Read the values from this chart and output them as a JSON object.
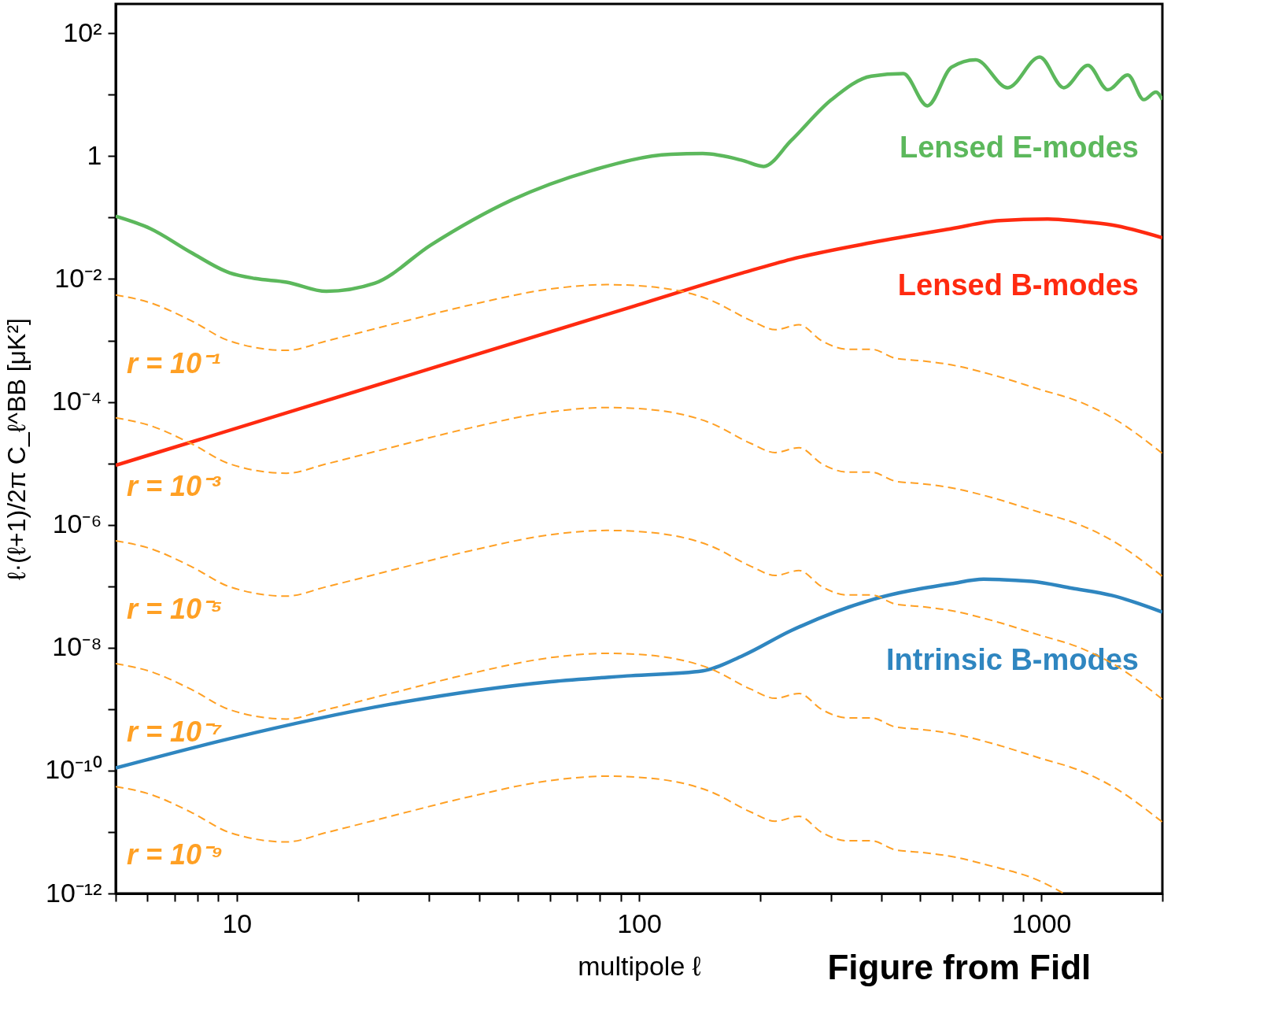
{
  "chart_data": {
    "type": "line",
    "xlabel": "multipole ℓ",
    "ylabel": "ℓ·(ℓ+1)/2π C_ℓ^BB [μK²]",
    "log": "xy",
    "grid": false,
    "xlim": [
      5,
      2000
    ],
    "ylim": [
      1e-12,
      300
    ],
    "xticks": [
      {
        "value": 5,
        "label": null
      },
      {
        "value": 6,
        "label": null
      },
      {
        "value": 7,
        "label": null
      },
      {
        "value": 8,
        "label": null
      },
      {
        "value": 9,
        "label": null
      },
      10,
      {
        "value": 20,
        "label": null
      },
      {
        "value": 30,
        "label": null
      },
      {
        "value": 40,
        "label": null
      },
      {
        "value": 50,
        "label": null
      },
      {
        "value": 60,
        "label": null
      },
      {
        "value": 70,
        "label": null
      },
      {
        "value": 80,
        "label": null
      },
      {
        "value": 90,
        "label": null
      },
      100,
      {
        "value": 200,
        "label": null
      },
      {
        "value": 300,
        "label": null
      },
      {
        "value": 400,
        "label": null
      },
      {
        "value": 500,
        "label": null
      },
      {
        "value": 600,
        "label": null
      },
      {
        "value": 700,
        "label": null
      },
      {
        "value": 800,
        "label": null
      },
      {
        "value": 900,
        "label": null
      },
      1000,
      {
        "value": 2000,
        "label": null
      }
    ],
    "yticks": [
      {
        "value": 1e-12,
        "label": "10⁻¹²"
      },
      {
        "value": 1e-11,
        "label": null
      },
      {
        "value": 1e-10,
        "label": "10⁻¹⁰"
      },
      {
        "value": 1e-09,
        "label": null
      },
      {
        "value": 1e-08,
        "label": "10⁻⁸"
      },
      {
        "value": 1e-07,
        "label": null
      },
      {
        "value": 1e-06,
        "label": "10⁻⁶"
      },
      {
        "value": 1e-05,
        "label": null
      },
      {
        "value": 0.0001,
        "label": "10⁻⁴"
      },
      {
        "value": 0.001,
        "label": null
      },
      {
        "value": 0.01,
        "label": "10⁻²"
      },
      {
        "value": 0.1,
        "label": null
      },
      1,
      {
        "value": 10,
        "label": null
      },
      {
        "value": 100,
        "label": "10²"
      }
    ],
    "annotations": [
      "Figure from Fidl"
    ],
    "series": [
      {
        "name": "Lensed E-modes",
        "color": "#5cb85c",
        "line_style": "solid",
        "x": [
          5,
          6.1,
          7.7,
          9.6,
          11.1,
          13.3,
          16.7,
          22,
          30.4,
          48,
          76,
          120,
          144,
          181,
          204,
          239,
          301,
          378,
          454,
          521,
          598,
          687,
          825,
          991,
          1137,
          1306,
          1464,
          1641,
          1798,
          1928,
          2000
        ],
        "values": [
          0.105,
          0.066,
          0.027,
          0.0126,
          0.0102,
          0.0089,
          0.0063,
          0.0085,
          0.036,
          0.19,
          0.58,
          1.07,
          1.1,
          0.85,
          0.68,
          1.8,
          8.3,
          20,
          22,
          6.6,
          28,
          37,
          13,
          41,
          13,
          30,
          12,
          21,
          8.3,
          11,
          8.3
        ]
      },
      {
        "name": "Lensed B-modes",
        "color": "#ff2a10",
        "line_style": "solid",
        "x": [
          5,
          16.7,
          95.5,
          181,
          239,
          378,
          598,
          787,
          1038,
          1247,
          1497,
          2000
        ],
        "values": [
          9.3e-06,
          0.000105,
          0.0035,
          0.0126,
          0.021,
          0.039,
          0.066,
          0.089,
          0.095,
          0.087,
          0.076,
          0.047
        ]
      },
      {
        "name": "Intrinsic B-modes",
        "color": "#2f86c0",
        "line_style": "solid",
        "x": [
          5,
          9.6,
          24.1,
          60.4,
          95.5,
          144,
          181,
          239,
          378,
          598,
          719,
          946,
          1192,
          1497,
          2000
        ],
        "values": [
          1.1e-10,
          3.3e-10,
          1.2e-09,
          2.8e-09,
          3.5e-09,
          4.2e-09,
          7.4e-09,
          1.9e-08,
          6e-08,
          1.1e-07,
          1.3e-07,
          1.2e-07,
          9.3e-08,
          7.1e-08,
          3.8e-08
        ]
      },
      {
        "name": "r = 10⁻¹",
        "color": "#ffa024",
        "line_style": "dashed",
        "x": [
          5,
          6.1,
          7.7,
          9.6,
          13.3,
          16.7,
          24.1,
          38.2,
          60.4,
          83.2,
          104.6,
          151,
          190,
          218,
          250,
          285,
          330,
          378,
          435,
          498,
          598,
          750,
          991,
          1247,
          1497,
          2000
        ],
        "values": [
          0.0055,
          0.0041,
          0.0021,
          0.00098,
          0.00069,
          0.00098,
          0.0018,
          0.0038,
          0.0069,
          0.0081,
          0.0076,
          0.0045,
          0.0021,
          0.0015,
          0.0018,
          0.00098,
          0.00072,
          0.00072,
          0.00051,
          0.00047,
          0.0004,
          0.00028,
          0.00016,
          0.0001,
          5.6e-05,
          1.45e-05
        ]
      },
      {
        "name": "r = 10⁻³",
        "color": "#ffa024",
        "line_style": "dashed",
        "x": [
          5,
          6.1,
          7.7,
          9.6,
          13.3,
          16.7,
          24.1,
          38.2,
          60.4,
          83.2,
          104.6,
          151,
          190,
          218,
          250,
          285,
          330,
          378,
          435,
          498,
          598,
          750,
          991,
          1247,
          1497,
          2000
        ],
        "values": [
          5.5e-05,
          4.1e-05,
          2.1e-05,
          9.8e-06,
          6.9e-06,
          9.8e-06,
          1.8e-05,
          3.8e-05,
          6.9e-05,
          8.1e-05,
          7.6e-05,
          4.5e-05,
          2.1e-05,
          1.5e-05,
          1.8e-05,
          9.8e-06,
          7.2e-06,
          7.2e-06,
          5.1e-06,
          4.7e-06,
          4e-06,
          2.8e-06,
          1.6e-06,
          1e-06,
          5.6e-07,
          1.45e-07
        ]
      },
      {
        "name": "r = 10⁻⁵",
        "color": "#ffa024",
        "line_style": "dashed",
        "x": [
          5,
          6.1,
          7.7,
          9.6,
          13.3,
          16.7,
          24.1,
          38.2,
          60.4,
          83.2,
          104.6,
          151,
          190,
          218,
          250,
          285,
          330,
          378,
          435,
          498,
          598,
          750,
          991,
          1247,
          1497,
          2000
        ],
        "values": [
          5.5e-07,
          4.1e-07,
          2.1e-07,
          9.8e-08,
          6.9e-08,
          9.8e-08,
          1.8e-07,
          3.8e-07,
          6.9e-07,
          8.1e-07,
          7.6e-07,
          4.5e-07,
          2.1e-07,
          1.5e-07,
          1.8e-07,
          9.8e-08,
          7.2e-08,
          7.2e-08,
          5.1e-08,
          4.7e-08,
          4e-08,
          2.8e-08,
          1.6e-08,
          1e-08,
          5.6e-09,
          1.45e-09
        ]
      },
      {
        "name": "r = 10⁻⁷",
        "color": "#ffa024",
        "line_style": "dashed",
        "x": [
          5,
          6.1,
          7.7,
          9.6,
          13.3,
          16.7,
          24.1,
          38.2,
          60.4,
          83.2,
          104.6,
          151,
          190,
          218,
          250,
          285,
          330,
          378,
          435,
          498,
          598,
          750,
          991,
          1247,
          1497,
          2000
        ],
        "values": [
          5.5e-09,
          4.1e-09,
          2.1e-09,
          9.8e-10,
          6.9e-10,
          9.8e-10,
          1.8e-09,
          3.8e-09,
          6.9e-09,
          8.1e-09,
          7.6e-09,
          4.5e-09,
          2.1e-09,
          1.5e-09,
          1.8e-09,
          9.8e-10,
          7.2e-10,
          7.2e-10,
          5.1e-10,
          4.7e-10,
          4e-10,
          2.8e-10,
          1.6e-10,
          1e-10,
          5.6e-11,
          1.45e-11
        ]
      },
      {
        "name": "r = 10⁻⁹",
        "color": "#ffa024",
        "line_style": "dashed",
        "x": [
          5,
          6.1,
          7.7,
          9.6,
          13.3,
          16.7,
          24.1,
          38.2,
          60.4,
          83.2,
          104.6,
          151,
          190,
          218,
          250,
          285,
          330,
          378,
          435,
          498,
          598,
          750,
          991,
          1137
        ],
        "values": [
          5.5e-11,
          4.1e-11,
          2.1e-11,
          9.8e-12,
          6.9e-12,
          9.8e-12,
          1.8e-11,
          3.8e-11,
          6.9e-11,
          8.1e-11,
          7.6e-11,
          4.5e-11,
          2.1e-11,
          1.5e-11,
          1.8e-11,
          9.8e-12,
          7.2e-12,
          7.2e-12,
          5.1e-12,
          4.7e-12,
          4e-12,
          2.8e-12,
          1.6e-12,
          1e-12
        ]
      }
    ]
  }
}
